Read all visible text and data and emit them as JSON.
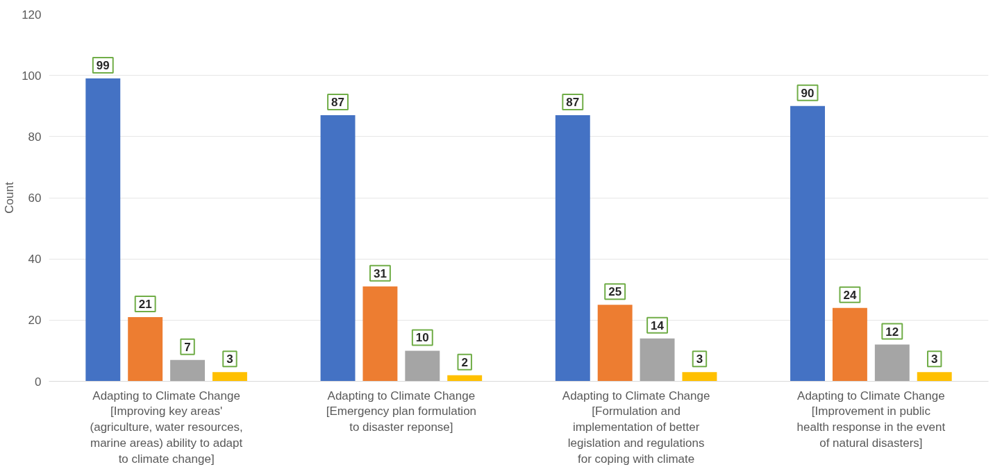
{
  "chart_data": {
    "type": "bar",
    "ylabel": "Count",
    "categories": [
      "Adapting to Climate Change\n[Improving key areas'\n(agriculture, water resources,\nmarine areas) ability to adapt\nto climate change]",
      "Adapting to Climate Change\n[Emergency plan formulation\nto disaster reponse]",
      "Adapting to Climate Change\n[Formulation and\nimplementation of better\nlegislation and regulations\nfor coping with climate",
      "Adapting to Climate Change\n[Improvement in public\nhealth response in the event\nof natural disasters]"
    ],
    "series": [
      {
        "color": "#4472c4",
        "values": [
          99,
          87,
          87,
          90
        ]
      },
      {
        "color": "#ed7d31",
        "values": [
          21,
          31,
          25,
          24
        ]
      },
      {
        "color": "#a5a5a5",
        "values": [
          7,
          10,
          14,
          12
        ]
      },
      {
        "color": "#ffc000",
        "values": [
          3,
          2,
          3,
          3
        ]
      }
    ],
    "ylim": [
      0,
      120
    ],
    "yticks": [
      0,
      20,
      40,
      60,
      80,
      100,
      120
    ],
    "grid": "y",
    "data_labels": true
  }
}
